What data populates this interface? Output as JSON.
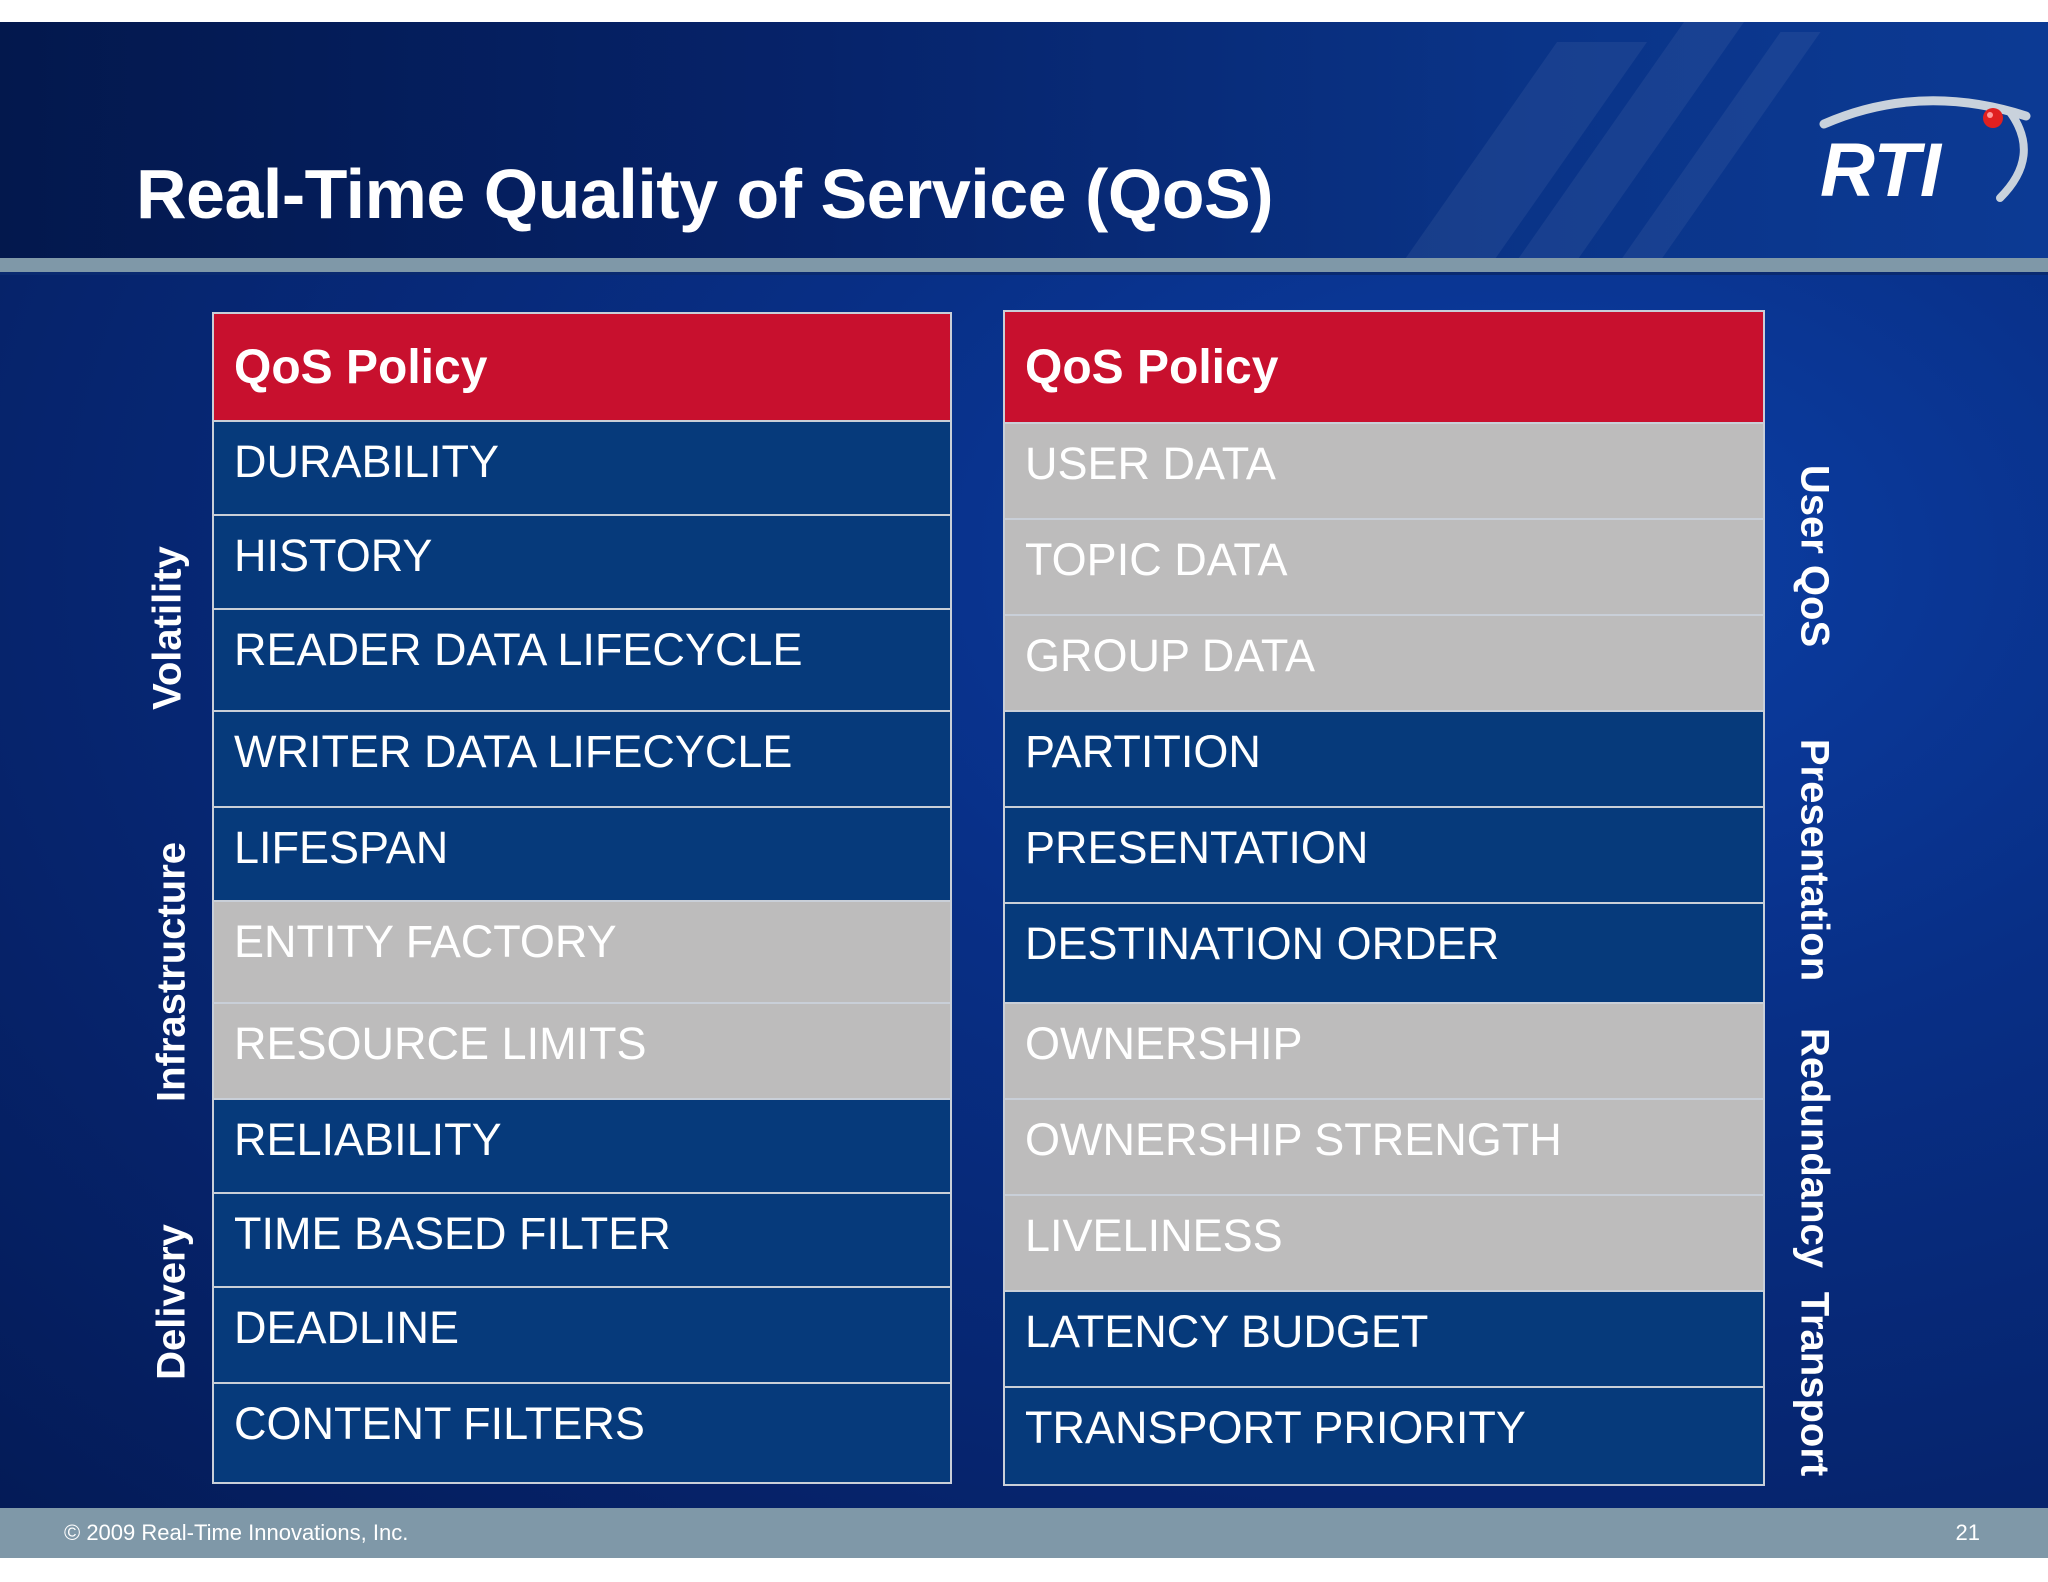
{
  "title": "Real-Time Quality of Service (QoS)",
  "logo_text": "RTI",
  "left_table": {
    "header": "QoS Policy",
    "rows": [
      {
        "label": "DURABILITY",
        "style": "blue"
      },
      {
        "label": "HISTORY",
        "style": "blue"
      },
      {
        "label": "READER DATA LIFECYCLE",
        "style": "blue"
      },
      {
        "label": "WRITER DATA LIFECYCLE",
        "style": "blue"
      },
      {
        "label": "LIFESPAN",
        "style": "blue"
      },
      {
        "label": "ENTITY FACTORY",
        "style": "gray"
      },
      {
        "label": "RESOURCE LIMITS",
        "style": "gray"
      },
      {
        "label": "RELIABILITY",
        "style": "blue"
      },
      {
        "label": "TIME BASED FILTER",
        "style": "blue"
      },
      {
        "label": "DEADLINE",
        "style": "blue"
      },
      {
        "label": "CONTENT FILTERS",
        "style": "blue"
      }
    ]
  },
  "right_table": {
    "header": "QoS Policy",
    "rows": [
      {
        "label": "USER DATA",
        "style": "gray"
      },
      {
        "label": "TOPIC DATA",
        "style": "gray"
      },
      {
        "label": "GROUP DATA",
        "style": "gray"
      },
      {
        "label": "PARTITION",
        "style": "blue"
      },
      {
        "label": "PRESENTATION",
        "style": "blue"
      },
      {
        "label": "DESTINATION ORDER",
        "style": "blue"
      },
      {
        "label": "OWNERSHIP",
        "style": "gray"
      },
      {
        "label": "OWNERSHIP STRENGTH",
        "style": "gray"
      },
      {
        "label": "LIVELINESS",
        "style": "gray"
      },
      {
        "label": "LATENCY BUDGET",
        "style": "blue"
      },
      {
        "label": "TRANSPORT PRIORITY",
        "style": "blue"
      }
    ]
  },
  "left_groups": [
    "Volatility",
    "Infrastructure",
    "Delivery"
  ],
  "right_groups": [
    "User QoS",
    "Presentation",
    "Redundancy",
    "Transport"
  ],
  "footer": {
    "copyright": "© 2009 Real-Time Innovations, Inc.",
    "page_number": "21"
  },
  "colors": {
    "header_red": "#c8102e",
    "row_blue": "#063a7b",
    "row_gray": "#bdbcbc",
    "bar_gray": "#7f98a8"
  }
}
